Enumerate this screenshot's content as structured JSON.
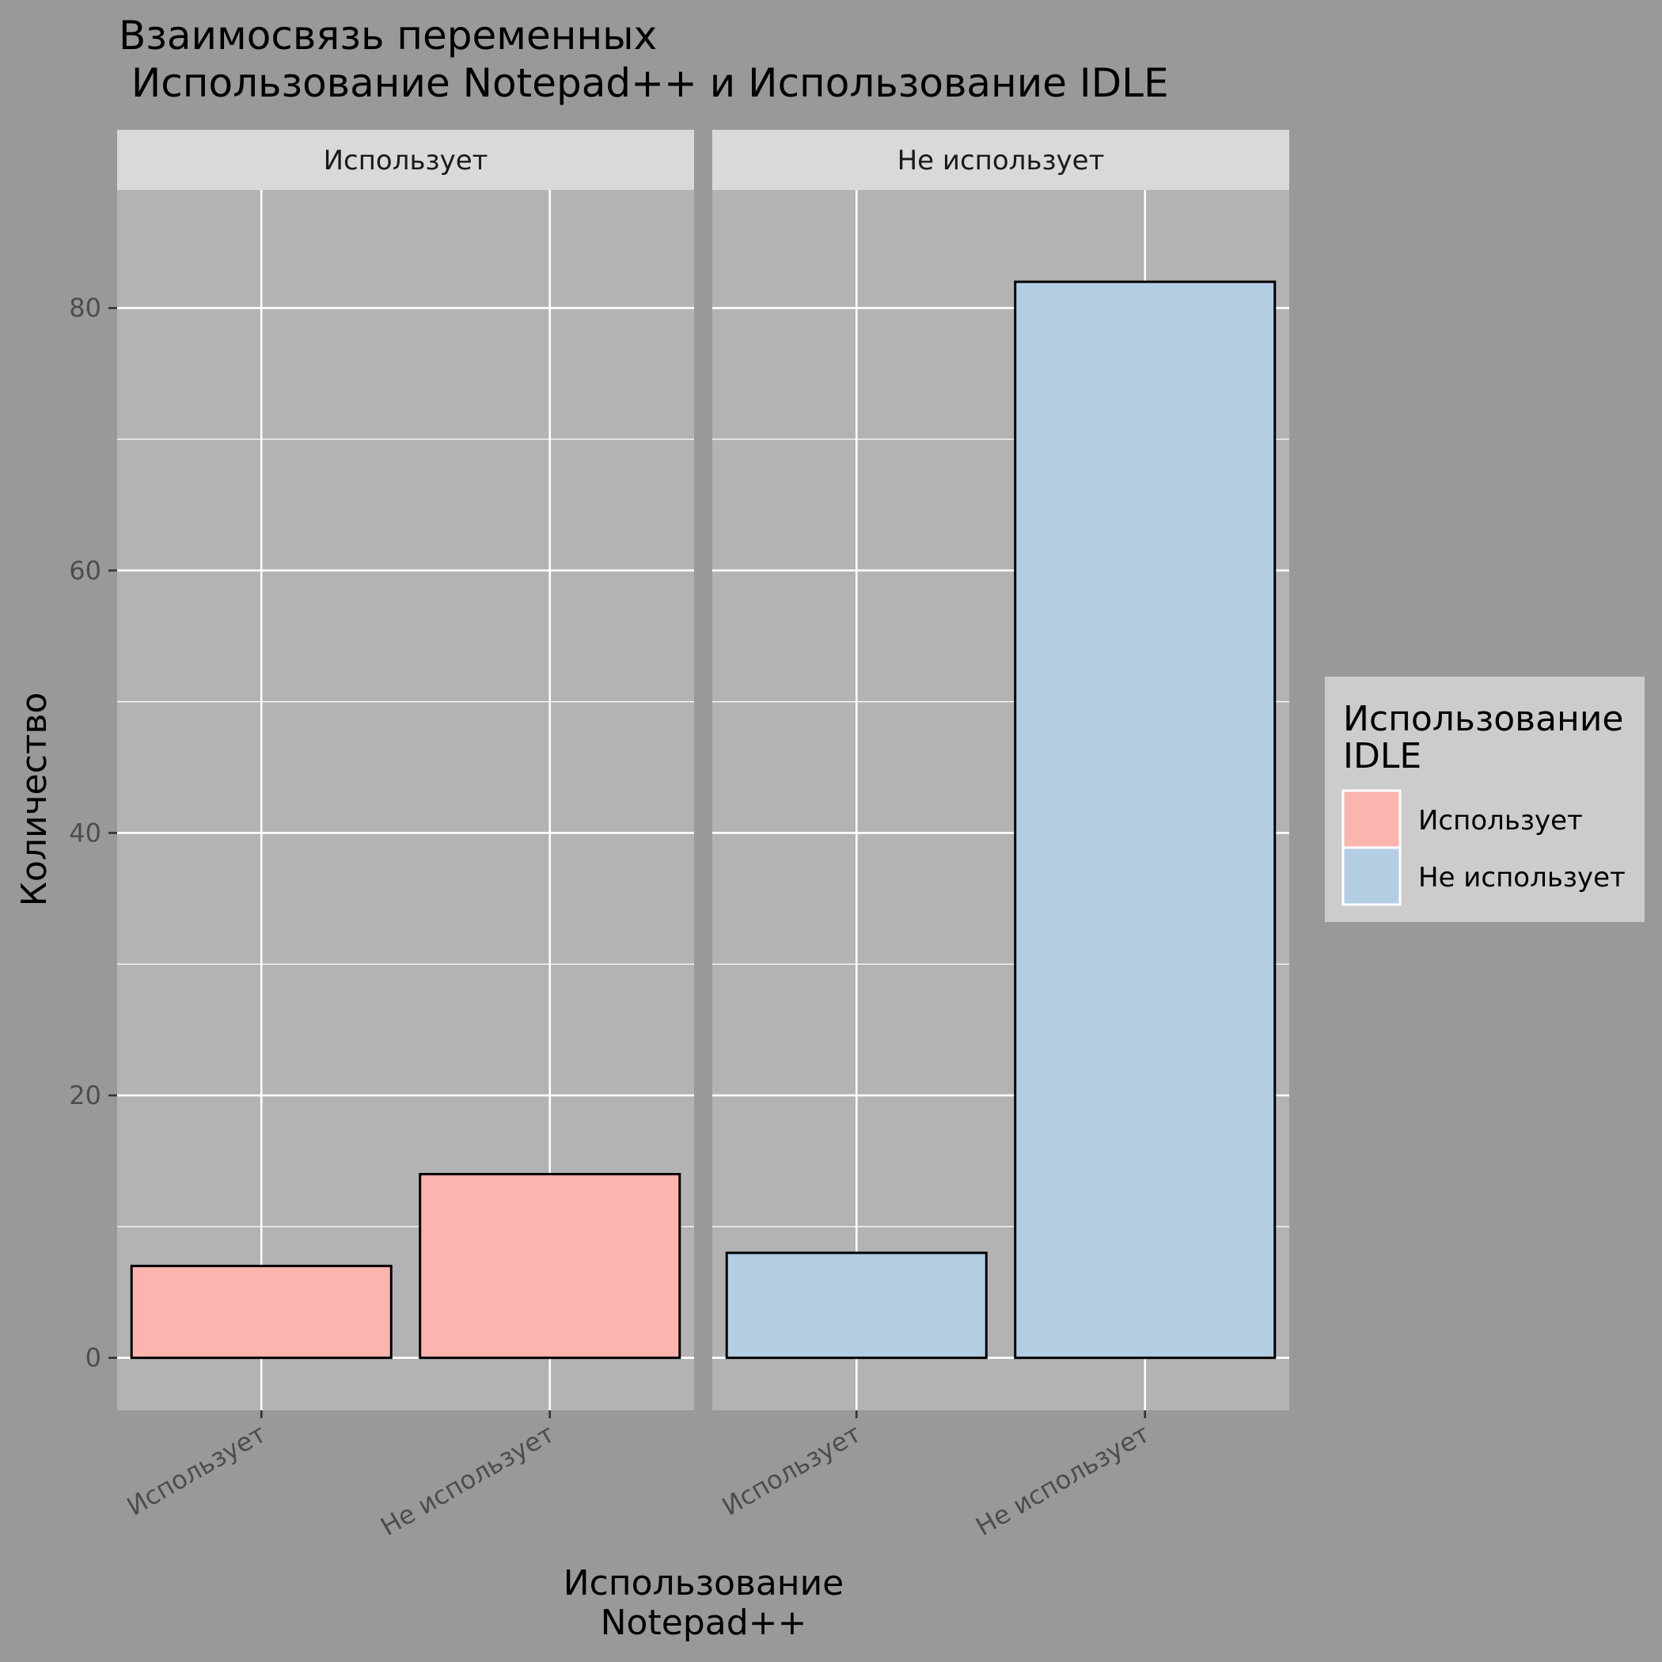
{
  "chart_data": {
    "type": "bar",
    "title_lines": [
      "Взаимосвязь переменных",
      " Использование Notepad++ и Использование IDLE"
    ],
    "xlabel_lines": [
      "Использование",
      "Notepad++"
    ],
    "ylabel": "Количество",
    "ylim": [
      -4,
      89
    ],
    "y_ticks": [
      0,
      20,
      40,
      60,
      80
    ],
    "y_tick_labels": [
      "0",
      "20",
      "40",
      "60",
      "80"
    ],
    "categories": [
      "Использует",
      "Не использует"
    ],
    "facets": [
      {
        "label": "Использует",
        "fill_key": "Использует",
        "values": [
          7,
          14
        ]
      },
      {
        "label": "Не использует",
        "fill_key": "Не использует",
        "values": [
          8,
          82
        ]
      }
    ],
    "legend": {
      "title_lines": [
        "Использование",
        "IDLE"
      ],
      "placement": "right",
      "items": [
        {
          "label": "Использует",
          "color": "#FBB4AE"
        },
        {
          "label": "Не использует",
          "color": "#B3CDE3"
        }
      ]
    },
    "grid": true,
    "colors": {
      "background": "#999999",
      "panel": "#B3B3B3",
      "strip": "#D9D9D9",
      "legend_bg": "#CCCCCC",
      "grid": "#FFFFFF"
    }
  }
}
